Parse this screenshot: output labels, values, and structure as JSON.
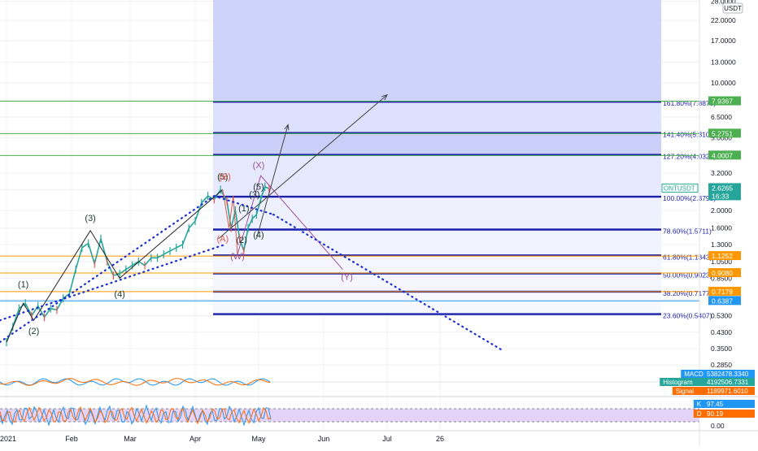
{
  "currency": "USDT",
  "chart_data": {
    "type": "line",
    "title": "",
    "symbol": "ONTUSDT",
    "y_scale": "log",
    "ylim": [
      0.26,
      30
    ],
    "x_ticks": [
      {
        "label": "2021",
        "date": "2021-01-01"
      },
      {
        "label": "Feb",
        "date": "2021-02-01"
      },
      {
        "label": "Mar",
        "date": "2021-03-01"
      },
      {
        "label": "Apr",
        "date": "2021-04-01"
      },
      {
        "label": "May",
        "date": "2021-05-01"
      },
      {
        "label": "Jun",
        "date": "2021-06-01"
      },
      {
        "label": "Jul",
        "date": "2021-07-01"
      },
      {
        "label": "26",
        "date": "2021-07-26"
      }
    ],
    "y_ticks": [
      "28.0000",
      "22.0000",
      "17.0000",
      "13.0000",
      "10.0000",
      "6.5000",
      "5.0000",
      "4.0000",
      "3.2000",
      "2.6000",
      "2.0000",
      "1.6000",
      "1.3000",
      "1.0500",
      "0.8500",
      "0.6500",
      "0.5300",
      "0.4300",
      "0.3500",
      "0.2850"
    ],
    "price_series": {
      "name": "ONTUSDT",
      "x": [
        "2021-01-01",
        "2021-01-04",
        "2021-01-07",
        "2021-01-10",
        "2021-01-13",
        "2021-01-16",
        "2021-01-19",
        "2021-01-22",
        "2021-01-25",
        "2021-01-28",
        "2021-01-31",
        "2021-02-03",
        "2021-02-06",
        "2021-02-09",
        "2021-02-12",
        "2021-02-15",
        "2021-02-18",
        "2021-02-21",
        "2021-02-24",
        "2021-02-27",
        "2021-03-02",
        "2021-03-05",
        "2021-03-08",
        "2021-03-11",
        "2021-03-14",
        "2021-03-17",
        "2021-03-20",
        "2021-03-23",
        "2021-03-26",
        "2021-03-29",
        "2021-04-01",
        "2021-04-04",
        "2021-04-07",
        "2021-04-10",
        "2021-04-13",
        "2021-04-16",
        "2021-04-18",
        "2021-04-20",
        "2021-04-22",
        "2021-04-24",
        "2021-04-26",
        "2021-04-28",
        "2021-04-30",
        "2021-05-02",
        "2021-05-04",
        "2021-05-06"
      ],
      "y": [
        0.38,
        0.46,
        0.58,
        0.62,
        0.53,
        0.6,
        0.52,
        0.58,
        0.57,
        0.66,
        0.7,
        0.95,
        1.25,
        1.32,
        1.02,
        1.4,
        1.05,
        0.88,
        0.9,
        0.95,
        1.0,
        1.05,
        1.0,
        1.1,
        1.1,
        1.15,
        1.2,
        1.25,
        1.3,
        1.6,
        1.75,
        2.2,
        2.4,
        2.3,
        2.6,
        2.25,
        1.6,
        2.0,
        1.4,
        1.2,
        1.6,
        1.8,
        1.9,
        2.3,
        2.7,
        2.63
      ]
    },
    "last_price": "2.6265",
    "countdown": "16:33",
    "fib_levels": [
      {
        "ratio": "161.80%",
        "value": 7.887,
        "label": "161.80%(7.8870)"
      },
      {
        "ratio": "141.40%",
        "value": 5.3102,
        "label": "141.40%(5.3102)"
      },
      {
        "ratio": "127.20%",
        "value": 4.032,
        "label": "127.20%(4.0320)"
      },
      {
        "ratio": "100.00%",
        "value": 2.3793,
        "label": "100.00%(2.3793)"
      },
      {
        "ratio": "78.60%",
        "value": 1.5711,
        "label": "78.60%(1.5711)"
      },
      {
        "ratio": "61.80%",
        "value": 1.1343,
        "label": "61.80%(1.1343)"
      },
      {
        "ratio": "50.00%",
        "value": 0.9023,
        "label": "50.00%(0.9023)"
      },
      {
        "ratio": "38.20%",
        "value": 0.7177,
        "label": "38.20%(0.7177)"
      },
      {
        "ratio": "23.60%",
        "value": 0.5407,
        "label": "23.60%(0.5407)"
      }
    ],
    "horizontal_levels": [
      {
        "value": 7.9367,
        "label": "7.9367",
        "color": "#4caf50"
      },
      {
        "value": 5.2751,
        "label": "5.2751",
        "color": "#4caf50"
      },
      {
        "value": 4.0007,
        "label": "4.0007",
        "color": "#4caf50"
      },
      {
        "value": 1.1252,
        "label": "1.1252",
        "color": "#ff9800"
      },
      {
        "value": 0.908,
        "label": "0.9080",
        "color": "#ff9800"
      },
      {
        "value": 0.7179,
        "label": "0.7179",
        "color": "#ff9800"
      },
      {
        "value": 0.6387,
        "label": "0.6387",
        "color": "#2196f3"
      }
    ],
    "wave_labels": [
      {
        "text": "(1)",
        "date": "2021-01-09",
        "price": 0.76,
        "color": "#1b3a2f"
      },
      {
        "text": "(2)",
        "date": "2021-01-14",
        "price": 0.42,
        "color": "#1b3a2f"
      },
      {
        "text": "(3)",
        "date": "2021-02-10",
        "price": 1.75,
        "color": "#1b3a2f"
      },
      {
        "text": "(4)",
        "date": "2021-02-24",
        "price": 0.67,
        "color": "#1b3a2f"
      },
      {
        "text": "(5)",
        "date": "2021-04-14",
        "price": 2.95,
        "color": "#1b3a2f"
      },
      {
        "text": "(B)",
        "date": "2021-04-15",
        "price": 2.95,
        "color": "#e05a47"
      },
      {
        "text": "(A)",
        "date": "2021-04-14",
        "price": 1.35,
        "color": "#e05a47"
      },
      {
        "text": "(X)",
        "date": "2021-05-01",
        "price": 3.4,
        "color": "#9c4f9c"
      },
      {
        "text": "(5)",
        "date": "2021-05-01",
        "price": 2.6,
        "color": "#1b3a2f"
      },
      {
        "text": "(3)",
        "date": "2021-04-29",
        "price": 2.35,
        "color": "#1b3a2f"
      },
      {
        "text": "(1)",
        "date": "2021-04-24",
        "price": 1.98,
        "color": "#1b3a2f"
      },
      {
        "text": "(4)",
        "date": "2021-05-01",
        "price": 1.42,
        "color": "#1b3a2f"
      },
      {
        "text": "(2)",
        "date": "2021-04-23",
        "price": 1.33,
        "color": "#1b3a2f"
      },
      {
        "text": "(W)",
        "date": "2021-04-21",
        "price": 1.08,
        "color": "#9c4f9c"
      },
      {
        "text": "(Y)",
        "date": "2021-06-12",
        "price": 0.83,
        "color": "#9c4f9c"
      }
    ],
    "indicators": {
      "macd": {
        "label": "MACD",
        "value": "5382478.3340",
        "color": "#2196f3"
      },
      "histogram": {
        "label": "Histogram",
        "value": "4192506.7331",
        "color": "#26a69a"
      },
      "signal": {
        "label": "Signal",
        "value": "1189971.6010",
        "color": "#ff6d00"
      },
      "stoch_k": {
        "label": "K",
        "value": "97.45",
        "color": "#2196f3"
      },
      "stoch_d": {
        "label": "D",
        "value": "90.19",
        "color": "#ff6d00"
      },
      "stoch_zero": "0.00"
    },
    "grid": true,
    "legend": "none"
  }
}
